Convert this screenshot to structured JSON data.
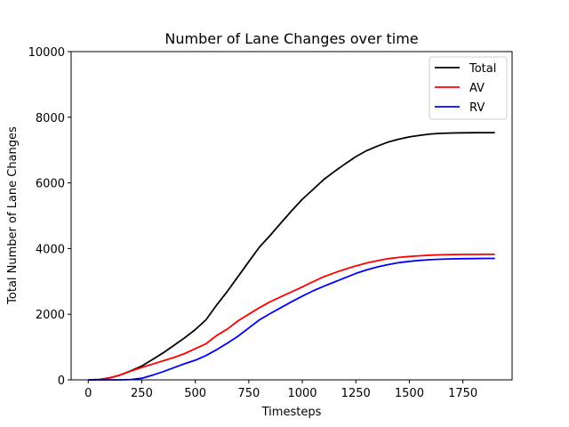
{
  "chart_data": {
    "type": "line",
    "title": "Number of Lane Changes over time",
    "xlabel": "Timesteps",
    "ylabel": "Total Number of Lane Changes",
    "xlim": [
      -80,
      1980
    ],
    "ylim": [
      0,
      10000
    ],
    "xticks": [
      0,
      250,
      500,
      750,
      1000,
      1250,
      1500,
      1750
    ],
    "yticks": [
      0,
      2000,
      4000,
      6000,
      8000,
      10000
    ],
    "grid": false,
    "legend": "top-right",
    "x": [
      0,
      50,
      100,
      150,
      200,
      250,
      300,
      350,
      400,
      450,
      500,
      550,
      600,
      650,
      700,
      750,
      800,
      850,
      900,
      950,
      1000,
      1050,
      1100,
      1150,
      1200,
      1250,
      1300,
      1350,
      1400,
      1450,
      1500,
      1550,
      1600,
      1650,
      1700,
      1750,
      1800,
      1850,
      1900
    ],
    "series": [
      {
        "name": "Total",
        "color": "#000000",
        "values": [
          0,
          10,
          60,
          150,
          280,
          420,
          620,
          820,
          1050,
          1280,
          1530,
          1830,
          2280,
          2700,
          3150,
          3600,
          4050,
          4400,
          4780,
          5150,
          5500,
          5800,
          6100,
          6350,
          6580,
          6800,
          6980,
          7120,
          7240,
          7330,
          7400,
          7450,
          7490,
          7510,
          7520,
          7525,
          7528,
          7530,
          7530
        ]
      },
      {
        "name": "AV",
        "color": "#ff0000",
        "values": [
          0,
          10,
          60,
          150,
          270,
          380,
          480,
          580,
          680,
          800,
          950,
          1100,
          1350,
          1550,
          1800,
          2000,
          2200,
          2380,
          2530,
          2680,
          2830,
          2990,
          3140,
          3260,
          3370,
          3470,
          3560,
          3630,
          3690,
          3730,
          3760,
          3780,
          3800,
          3810,
          3815,
          3820,
          3822,
          3823,
          3824
        ]
      },
      {
        "name": "RV",
        "color": "#0000ff",
        "values": [
          0,
          0,
          0,
          0,
          10,
          50,
          140,
          250,
          370,
          490,
          600,
          740,
          920,
          1120,
          1330,
          1580,
          1830,
          2020,
          2200,
          2380,
          2550,
          2710,
          2850,
          2980,
          3110,
          3240,
          3350,
          3440,
          3510,
          3570,
          3610,
          3640,
          3660,
          3675,
          3685,
          3690,
          3695,
          3698,
          3700
        ]
      }
    ]
  }
}
